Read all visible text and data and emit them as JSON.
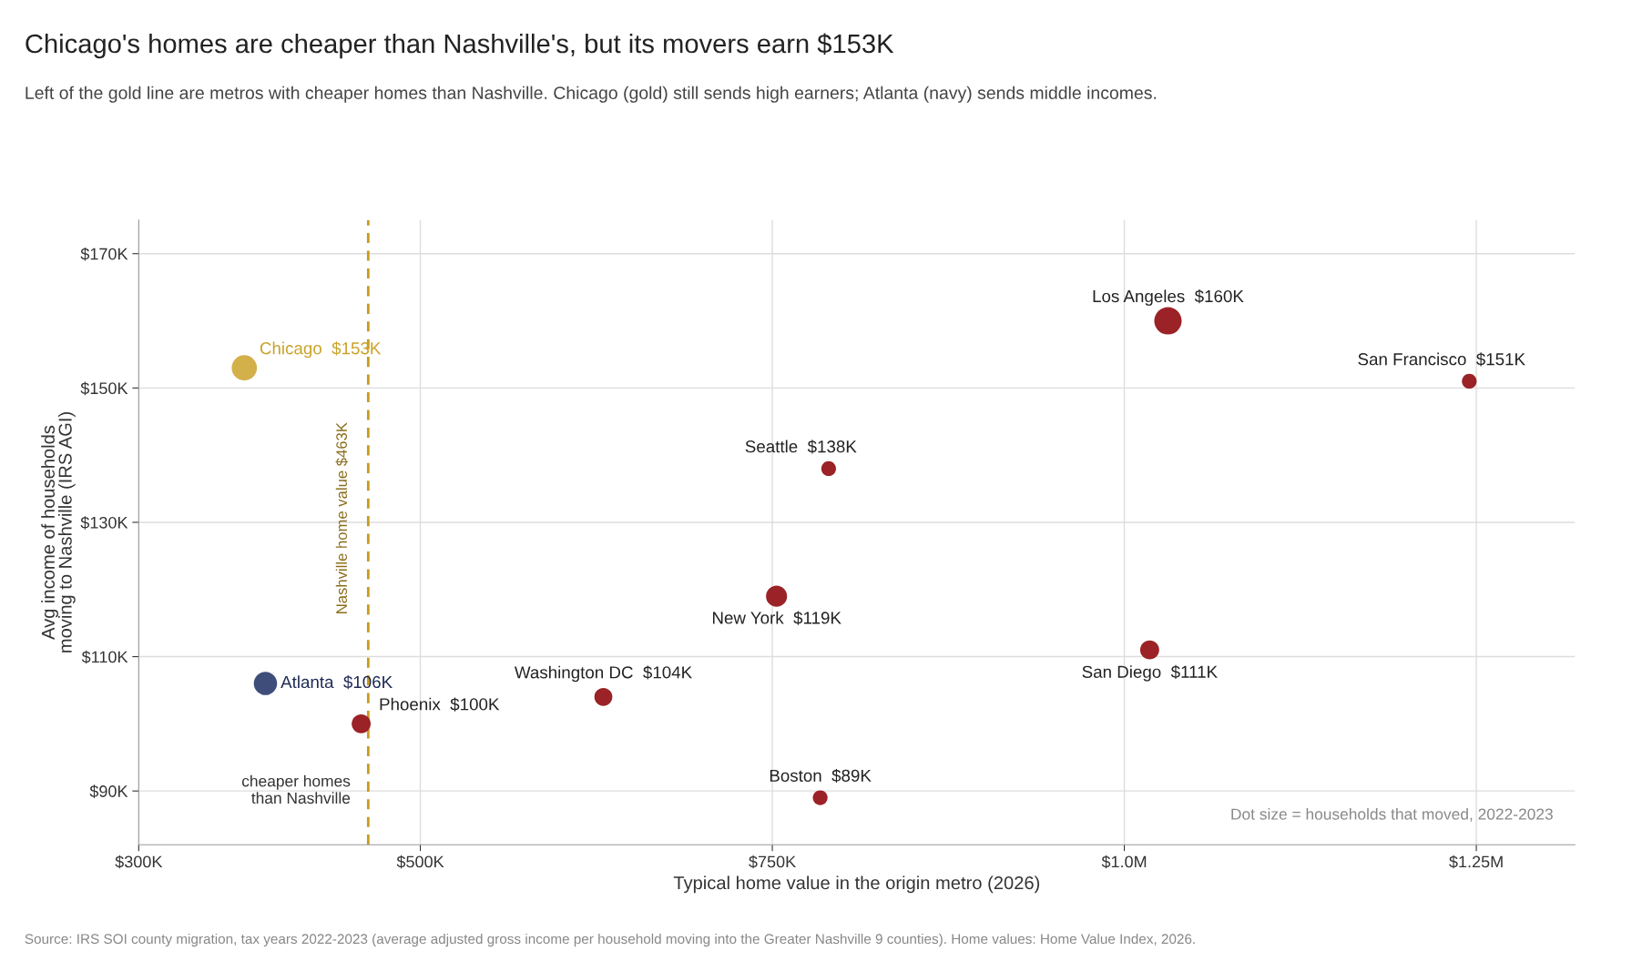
{
  "chart_data": {
    "type": "bubble",
    "title": "Chicago's homes are cheaper than Nashville's, but its movers earn $153K",
    "subtitle": "Left of the gold line are metros with cheaper homes than Nashville. Chicago (gold) still sends high earners; Atlanta (navy) sends middle incomes.",
    "xlabel": "Typical home value in the origin metro (2026)",
    "ylabel": "Avg income of households\nmoving to Nashville (IRS AGI)",
    "series": [
      {
        "name": "Chicago",
        "color": "#d4b04a",
        "x": [
          375000
        ],
        "values": [
          153
        ],
        "sizes": [
          0.85
        ],
        "value_labels": [
          "$153K"
        ]
      },
      {
        "name": "Atlanta",
        "color": "#3f4d7a",
        "x": [
          390000
        ],
        "values": [
          106
        ],
        "sizes": [
          0.72
        ],
        "value_labels": [
          "$106K"
        ]
      },
      {
        "name": "Phoenix",
        "color": "#9b2226",
        "x": [
          458000
        ],
        "values": [
          100
        ],
        "sizes": [
          0.48
        ],
        "value_labels": [
          "$100K"
        ]
      },
      {
        "name": "Washington DC",
        "color": "#9b2226",
        "x": [
          630000
        ],
        "values": [
          104
        ],
        "sizes": [
          0.43
        ],
        "value_labels": [
          "$104K"
        ]
      },
      {
        "name": "New York",
        "color": "#9b2226",
        "x": [
          753000
        ],
        "values": [
          119
        ],
        "sizes": [
          0.59
        ],
        "value_labels": [
          "$119K"
        ]
      },
      {
        "name": "Boston",
        "color": "#9b2226",
        "x": [
          784000
        ],
        "values": [
          89
        ],
        "sizes": [
          0.29
        ],
        "value_labels": [
          "$89K"
        ]
      },
      {
        "name": "Seattle",
        "color": "#9b2226",
        "x": [
          790000
        ],
        "values": [
          138
        ],
        "sizes": [
          0.29
        ],
        "value_labels": [
          "$138K"
        ]
      },
      {
        "name": "San Diego",
        "color": "#9b2226",
        "x": [
          1018000
        ],
        "values": [
          111
        ],
        "sizes": [
          0.48
        ],
        "value_labels": [
          "$111K"
        ]
      },
      {
        "name": "Los Angeles",
        "color": "#9b2226",
        "x": [
          1031000
        ],
        "values": [
          160
        ],
        "sizes": [
          1
        ],
        "value_labels": [
          "$160K"
        ]
      },
      {
        "name": "San Francisco",
        "color": "#9b2226",
        "x": [
          1245000
        ],
        "values": [
          151
        ],
        "sizes": [
          0.29
        ],
        "value_labels": [
          "$151K"
        ]
      }
    ],
    "xlim": [
      300000,
      1320000
    ],
    "ylim": [
      82,
      175
    ],
    "xticks": [
      {
        "value": 300000,
        "label": "$300K"
      },
      {
        "value": 500000,
        "label": "$500K"
      },
      {
        "value": 750000,
        "label": "$750K"
      },
      {
        "value": 1000000,
        "label": "$1.0M"
      },
      {
        "value": 1250000,
        "label": "$1.25M"
      }
    ],
    "yticks": [
      {
        "value": 90,
        "label": "$90K"
      },
      {
        "value": 110,
        "label": "$110K"
      },
      {
        "value": 130,
        "label": "$130K"
      },
      {
        "value": 150,
        "label": "$150K"
      },
      {
        "value": 170,
        "label": "$170K"
      }
    ],
    "ref_lines": [
      {
        "axis": "x",
        "value": 463000,
        "label": "Nashville home value $463K",
        "color": "#c99a1a",
        "line_style": "dashed"
      }
    ],
    "annotations": [
      "cheaper homes\nthan Nashville",
      "Dot size = households that moved, 2022-2023",
      "Source: IRS SOI county migration, tax years 2022-2023 (average adjusted gross income per household moving into the Greater Nashville 9 counties). Home values: Home Value Index, 2026."
    ],
    "grid": true
  }
}
